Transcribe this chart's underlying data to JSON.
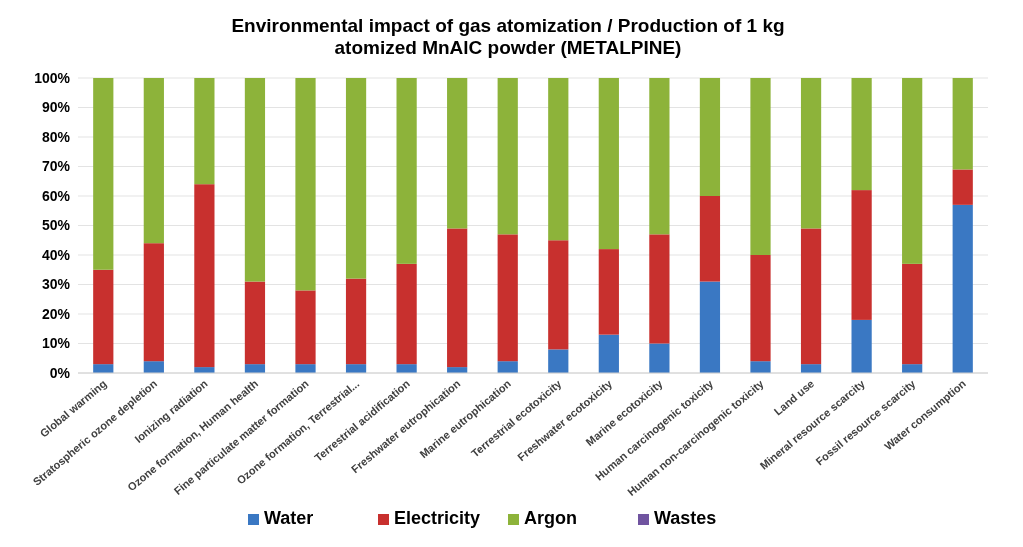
{
  "chart_data": {
    "type": "bar",
    "stacked": true,
    "title": "Environmental impact of gas atomization / Production of 1 kg atomized MnAlC powder (METALPINE)",
    "categories": [
      "Global warming",
      "Stratospheric ozone depletion",
      "Ionizing radiation",
      "Ozone formation, Human health",
      "Fine particulate matter formation",
      "Ozone formation, Terrestrial...",
      "Terrestrial acidification",
      "Freshwater eutrophication",
      "Marine eutrophication",
      "Terrestrial ecotoxicity",
      "Freshwater ecotoxicity",
      "Marine ecotoxicity",
      "Human carcinogenic toxicity",
      "Human non-carcinogenic toxicity",
      "Land use",
      "Mineral resource scarcity",
      "Fossil resource scarcity",
      "Water consumption"
    ],
    "series": [
      {
        "name": "Water",
        "color": "#3a78c3",
        "values": [
          3,
          4,
          2,
          3,
          3,
          3,
          3,
          2,
          4,
          8,
          13,
          10,
          31,
          4,
          3,
          18,
          3,
          57
        ]
      },
      {
        "name": "Electricity",
        "color": "#c8302e",
        "values": [
          32,
          40,
          62,
          28,
          25,
          29,
          34,
          47,
          43,
          37,
          29,
          37,
          29,
          36,
          46,
          44,
          34,
          12
        ]
      },
      {
        "name": "Argon",
        "color": "#8db33a",
        "values": [
          65,
          56,
          36,
          69,
          72,
          68,
          63,
          51,
          53,
          55,
          58,
          53,
          40,
          60,
          51,
          38,
          63,
          31
        ]
      },
      {
        "name": "Wastes",
        "color": "#7054a0",
        "values": [
          0,
          0,
          0,
          0,
          0,
          0,
          0,
          0,
          0,
          0,
          0,
          0,
          0,
          0,
          0,
          0,
          0,
          0
        ]
      }
    ],
    "ylim": [
      0,
      100
    ],
    "yticks": [
      {
        "value": 0,
        "label": "0%"
      },
      {
        "value": 10,
        "label": "10%"
      },
      {
        "value": 20,
        "label": "20%"
      },
      {
        "value": 30,
        "label": "30%"
      },
      {
        "value": 40,
        "label": "40%"
      },
      {
        "value": 50,
        "label": "50%"
      },
      {
        "value": 60,
        "label": "60%"
      },
      {
        "value": 70,
        "label": "70%"
      },
      {
        "value": 80,
        "label": "80%"
      },
      {
        "value": 90,
        "label": "90%"
      },
      {
        "value": 100,
        "label": "100%"
      }
    ],
    "grid": "y",
    "legend": "bottom"
  }
}
